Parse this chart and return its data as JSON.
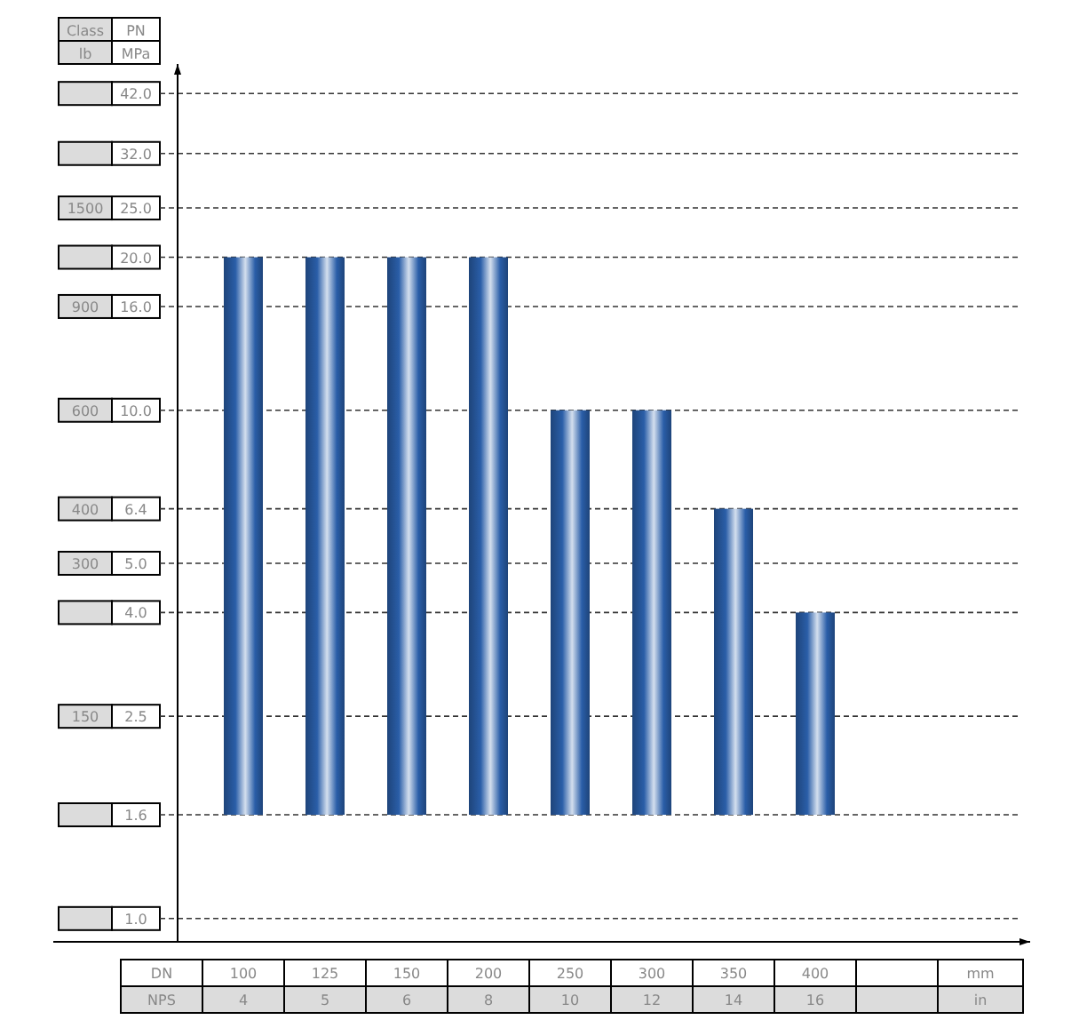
{
  "chart_data": {
    "type": "bar",
    "categories": [
      "100",
      "125",
      "150",
      "200",
      "250",
      "300",
      "350",
      "400",
      null
    ],
    "base": [
      1.6,
      1.6,
      1.6,
      1.6,
      1.6,
      1.6,
      1.6,
      1.6,
      null
    ],
    "values": [
      18.4,
      18.4,
      18.4,
      18.4,
      8.4,
      8.4,
      4.8,
      2.4,
      null
    ],
    "color": "#2a5ea8",
    "log": true,
    "ylim": [
      0.9,
      48
    ],
    "yticks": [
      {
        "value": 1,
        "label": "1.0"
      },
      1.6,
      2.5,
      {
        "value": 4,
        "label": "4.0"
      },
      {
        "value": 5,
        "label": "5.0"
      },
      6.4,
      {
        "value": 10,
        "label": "10.0"
      },
      {
        "value": 16,
        "label": "16.0"
      },
      {
        "value": 20,
        "label": "20.0"
      },
      {
        "value": 25,
        "label": "25.0"
      },
      {
        "value": 32,
        "label": "32.0"
      },
      {
        "value": 42,
        "label": "42.0"
      }
    ],
    "grid": "y",
    "annotations": [
      "Class",
      "lb",
      "PN",
      "MPa",
      "DN",
      "NPS",
      "mm",
      "in",
      "4",
      "5",
      "6",
      "8",
      "10",
      "12",
      "14",
      "16",
      "1500",
      "900",
      "600",
      "400",
      "300",
      "150"
    ]
  }
}
